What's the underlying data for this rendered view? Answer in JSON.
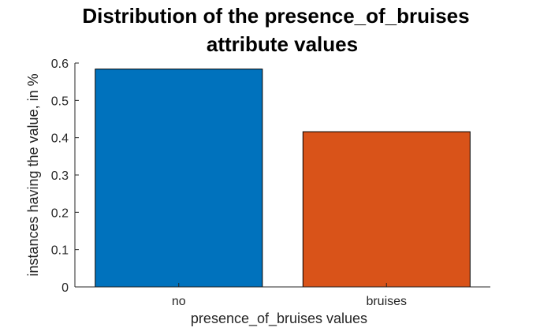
{
  "chart_data": {
    "type": "bar",
    "title": "Distribution of the presence_of_bruises attribute values",
    "title_lines": [
      "Distribution of the presence_of_bruises",
      "attribute values"
    ],
    "xlabel": "presence_of_bruises values",
    "ylabel": "instances having the value, in %",
    "categories": [
      "no",
      "bruises"
    ],
    "values": [
      0.584,
      0.416
    ],
    "ylim": [
      0,
      0.6
    ],
    "yticks": [
      0,
      0.1,
      0.2,
      0.3,
      0.4,
      0.5,
      0.6
    ],
    "ytick_labels": [
      "0",
      "0.1",
      "0.2",
      "0.3",
      "0.4",
      "0.5",
      "0.6"
    ],
    "grid": false,
    "bar_colors": [
      "#0072BD",
      "#D95319"
    ],
    "axis_color": "#262626"
  }
}
